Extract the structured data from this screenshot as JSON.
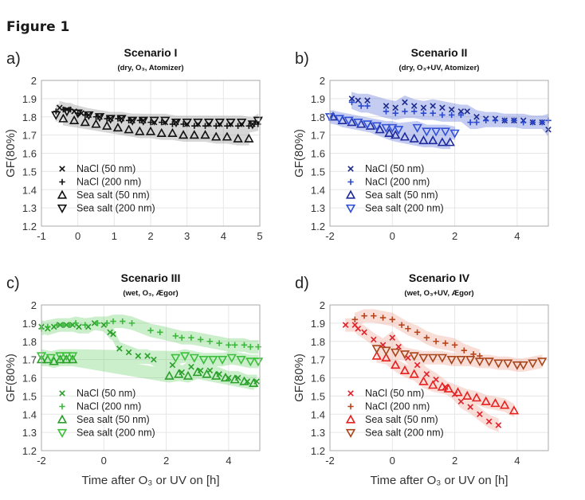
{
  "figure_title": "Figure 1",
  "chart_data": [
    {
      "type": "scatter",
      "panel_letter": "a)",
      "title": "Scenario I",
      "subtitle": "(dry, O₃, Atomizer)",
      "xlabel": "",
      "ylabel": "GF(80%)",
      "xlim": [
        -1,
        5
      ],
      "ylim": [
        1.2,
        2.0
      ],
      "xticks": [
        -1,
        0,
        1,
        2,
        3,
        4,
        5
      ],
      "yticks": [
        1.2,
        1.3,
        1.4,
        1.5,
        1.6,
        1.7,
        1.8,
        1.9,
        2.0
      ],
      "ytick_labels": [
        "1.2",
        "1.3",
        "1.4",
        "1.5",
        "1.6",
        "1.7",
        "1.8",
        "1.9",
        "2"
      ],
      "grid": true,
      "legend_location": "lower-left",
      "band_color": "#8c8c8c",
      "series": [
        {
          "name": "NaCl (50 nm)",
          "marker": "x",
          "color": "#111111",
          "x": [
            -0.5,
            -0.3,
            -0.1,
            0.1,
            0.3,
            0.6,
            0.9,
            1.2,
            1.5,
            1.8,
            2.1,
            2.4,
            2.7,
            3.0,
            3.3,
            3.6,
            3.9,
            4.2,
            4.5,
            4.8
          ],
          "y": [
            1.85,
            1.84,
            1.83,
            1.82,
            1.81,
            1.8,
            1.79,
            1.79,
            1.78,
            1.78,
            1.77,
            1.77,
            1.77,
            1.76,
            1.76,
            1.76,
            1.76,
            1.76,
            1.76,
            1.76
          ]
        },
        {
          "name": "NaCl (200 nm)",
          "marker": "+",
          "color": "#111111",
          "x": [
            -0.6,
            -0.4,
            -0.2,
            0.0,
            0.2,
            0.5,
            0.8,
            1.1,
            1.4,
            1.7,
            2.0,
            2.3,
            2.6,
            2.9,
            3.2,
            3.5,
            3.8,
            4.1,
            4.4,
            4.7,
            4.95
          ],
          "y": [
            1.83,
            1.84,
            1.84,
            1.82,
            1.81,
            1.8,
            1.79,
            1.79,
            1.78,
            1.78,
            1.77,
            1.77,
            1.76,
            1.76,
            1.75,
            1.75,
            1.75,
            1.75,
            1.75,
            1.75,
            1.76
          ]
        },
        {
          "name": "Sea salt (50 nm)",
          "marker": "^",
          "color": "#111111",
          "x": [
            -0.4,
            -0.1,
            0.2,
            0.5,
            0.8,
            1.1,
            1.4,
            1.7,
            2.0,
            2.3,
            2.6,
            2.9,
            3.2,
            3.5,
            3.8,
            4.1,
            4.4,
            4.7
          ],
          "y": [
            1.79,
            1.78,
            1.77,
            1.76,
            1.75,
            1.74,
            1.73,
            1.72,
            1.72,
            1.71,
            1.71,
            1.7,
            1.7,
            1.7,
            1.69,
            1.69,
            1.68,
            1.68
          ]
        },
        {
          "name": "Sea salt (200 nm)",
          "marker": "v",
          "color": "#111111",
          "x": [
            -0.6,
            -0.3,
            0.0,
            0.3,
            0.6,
            0.9,
            1.2,
            1.5,
            1.8,
            2.1,
            2.4,
            2.7,
            3.0,
            3.3,
            3.6,
            3.9,
            4.2,
            4.5,
            4.8,
            4.95
          ],
          "y": [
            1.81,
            1.83,
            1.82,
            1.81,
            1.8,
            1.79,
            1.79,
            1.78,
            1.78,
            1.78,
            1.78,
            1.77,
            1.77,
            1.77,
            1.77,
            1.77,
            1.77,
            1.77,
            1.76,
            1.78
          ]
        }
      ]
    },
    {
      "type": "scatter",
      "panel_letter": "b)",
      "title": "Scenario II",
      "subtitle": "(dry, O₃+UV, Atomizer)",
      "xlabel": "",
      "ylabel": "GF(80%)",
      "xlim": [
        -2,
        5
      ],
      "ylim": [
        1.2,
        2.0
      ],
      "xticks": [
        -2,
        0,
        2,
        4
      ],
      "yticks": [
        1.2,
        1.3,
        1.4,
        1.5,
        1.6,
        1.7,
        1.8,
        1.9,
        2.0
      ],
      "ytick_labels": [
        "1.2",
        "1.3",
        "1.4",
        "1.5",
        "1.6",
        "1.7",
        "1.8",
        "1.9",
        "2"
      ],
      "grid": true,
      "legend_location": "lower-left",
      "band_color": "#5a6ed8",
      "series": [
        {
          "name": "NaCl (50 nm)",
          "marker": "x",
          "color": "#1c2a8c",
          "x": [
            -1.3,
            -1.1,
            -0.8,
            -0.2,
            0.1,
            0.4,
            0.7,
            1.0,
            1.3,
            1.6,
            1.9,
            2.2,
            2.4,
            2.7,
            3.0,
            3.3,
            3.6,
            3.9,
            4.2,
            4.5,
            4.8,
            5.0
          ],
          "y": [
            1.9,
            1.89,
            1.89,
            1.86,
            1.85,
            1.88,
            1.86,
            1.85,
            1.86,
            1.85,
            1.84,
            1.83,
            1.83,
            1.8,
            1.79,
            1.79,
            1.78,
            1.78,
            1.78,
            1.77,
            1.77,
            1.73
          ]
        },
        {
          "name": "NaCl (200 nm)",
          "marker": "+",
          "color": "#2a48d0",
          "x": [
            -1.3,
            -1.0,
            -0.8,
            -0.2,
            0.1,
            0.4,
            0.7,
            1.0,
            1.3,
            1.6,
            1.9,
            2.2,
            2.5,
            2.7,
            3.0,
            3.3,
            3.6,
            3.9,
            4.2,
            4.5,
            4.8,
            5.0
          ],
          "y": [
            1.88,
            1.86,
            1.86,
            1.83,
            1.82,
            1.83,
            1.83,
            1.82,
            1.82,
            1.81,
            1.81,
            1.81,
            1.77,
            1.77,
            1.78,
            1.78,
            1.78,
            1.78,
            1.77,
            1.77,
            1.77,
            1.78
          ]
        },
        {
          "name": "Sea salt (50 nm)",
          "marker": "^",
          "color": "#1e2a9c",
          "x": [
            -1.9,
            -1.6,
            -1.3,
            -1.0,
            -0.7,
            -0.4,
            -0.1,
            0.1,
            0.4,
            0.7,
            1.0,
            1.3,
            1.6,
            1.85
          ],
          "y": [
            1.8,
            1.78,
            1.77,
            1.76,
            1.75,
            1.73,
            1.71,
            1.7,
            1.69,
            1.68,
            1.67,
            1.67,
            1.66,
            1.66
          ]
        },
        {
          "name": "Sea salt (200 nm)",
          "marker": "v",
          "color": "#3050d8",
          "x": [
            -2.0,
            -1.7,
            -1.4,
            -1.1,
            -0.8,
            -0.5,
            -0.2,
            0.0,
            0.2,
            0.8,
            1.1,
            1.4,
            1.7,
            2.0
          ],
          "y": [
            1.8,
            1.79,
            1.78,
            1.77,
            1.76,
            1.75,
            1.74,
            1.74,
            1.73,
            1.74,
            1.72,
            1.72,
            1.72,
            1.71
          ]
        }
      ]
    },
    {
      "type": "scatter",
      "panel_letter": "c)",
      "title": "Scenario III",
      "subtitle": "(wet, O₃, Ægor)",
      "xlabel": "Time after O₃ or UV on [h]",
      "ylabel": "GF(80%)",
      "xlim": [
        -2,
        5
      ],
      "ylim": [
        1.2,
        2.0
      ],
      "xticks": [
        -2,
        0,
        2,
        4
      ],
      "yticks": [
        1.2,
        1.3,
        1.4,
        1.5,
        1.6,
        1.7,
        1.8,
        1.9,
        2.0
      ],
      "ytick_labels": [
        "1.2",
        "1.3",
        "1.4",
        "1.5",
        "1.6",
        "1.7",
        "1.8",
        "1.9",
        "2"
      ],
      "grid": true,
      "legend_location": "lower-left",
      "band_color": "#6ccf6c",
      "series": [
        {
          "name": "NaCl (50 nm)",
          "marker": "x",
          "color": "#2aa02a",
          "x": [
            -2.0,
            -1.8,
            -1.6,
            -1.4,
            -1.2,
            -1.0,
            -0.8,
            -0.5,
            -0.3,
            0.0,
            0.2,
            0.3,
            0.5,
            0.8,
            1.1,
            1.4,
            1.6,
            2.2,
            2.5,
            2.8,
            3.1,
            3.4,
            3.7,
            4.0,
            4.3,
            4.6,
            4.9
          ],
          "y": [
            1.88,
            1.87,
            1.88,
            1.89,
            1.89,
            1.89,
            1.88,
            1.88,
            1.9,
            1.89,
            1.85,
            1.84,
            1.76,
            1.74,
            1.72,
            1.72,
            1.7,
            1.67,
            1.63,
            1.66,
            1.64,
            1.64,
            1.62,
            1.6,
            1.6,
            1.58,
            1.58
          ]
        },
        {
          "name": "NaCl (200 nm)",
          "marker": "+",
          "color": "#3cb83c",
          "x": [
            -2.0,
            -1.8,
            -1.5,
            -1.3,
            -1.1,
            -0.9,
            -0.6,
            -0.2,
            0.1,
            0.3,
            0.6,
            0.9,
            1.5,
            1.8,
            2.3,
            2.5,
            2.8,
            3.1,
            3.4,
            3.7,
            4.0,
            4.2,
            4.5,
            4.7,
            4.95
          ],
          "y": [
            1.87,
            1.88,
            1.89,
            1.89,
            1.89,
            1.9,
            1.89,
            1.9,
            1.9,
            1.91,
            1.91,
            1.9,
            1.86,
            1.85,
            1.83,
            1.82,
            1.82,
            1.81,
            1.8,
            1.79,
            1.78,
            1.78,
            1.78,
            1.77,
            1.77
          ]
        },
        {
          "name": "Sea salt (50 nm)",
          "marker": "^",
          "color": "#2aa02a",
          "x": [
            -2.0,
            -1.8,
            -1.6,
            -1.4,
            -1.2,
            -1.0,
            2.1,
            2.4,
            2.7,
            3.0,
            3.3,
            3.6,
            3.9,
            4.2,
            4.5,
            4.8
          ],
          "y": [
            1.7,
            1.7,
            1.69,
            1.7,
            1.7,
            1.7,
            1.61,
            1.62,
            1.61,
            1.63,
            1.62,
            1.61,
            1.6,
            1.59,
            1.58,
            1.57
          ]
        },
        {
          "name": "Sea salt (200 nm)",
          "marker": "v",
          "color": "#3cc03c",
          "x": [
            -2.0,
            -1.7,
            -1.4,
            -1.2,
            -1.0,
            2.3,
            2.6,
            2.9,
            3.2,
            3.5,
            3.8,
            4.1,
            4.4,
            4.7,
            4.95
          ],
          "y": [
            1.72,
            1.71,
            1.72,
            1.72,
            1.72,
            1.71,
            1.72,
            1.71,
            1.7,
            1.7,
            1.7,
            1.71,
            1.7,
            1.69,
            1.69
          ]
        }
      ]
    },
    {
      "type": "scatter",
      "panel_letter": "d)",
      "title": "Scenario IV",
      "subtitle": "(wet, O₃+UV, Ægor)",
      "xlabel": "Time after O₃ or UV on [h]",
      "ylabel": "GF(80%)",
      "xlim": [
        -2,
        5
      ],
      "ylim": [
        1.2,
        2.0
      ],
      "xticks": [
        -2,
        0,
        2,
        4
      ],
      "yticks": [
        1.2,
        1.3,
        1.4,
        1.5,
        1.6,
        1.7,
        1.8,
        1.9,
        2.0
      ],
      "ytick_labels": [
        "1.2",
        "1.3",
        "1.4",
        "1.5",
        "1.6",
        "1.7",
        "1.8",
        "1.9",
        "2"
      ],
      "grid": true,
      "legend_location": "lower-left",
      "band_color": "#f0a090",
      "series": [
        {
          "name": "NaCl (50 nm)",
          "marker": "x",
          "color": "#e0202a",
          "x": [
            -1.5,
            -1.2,
            -1.1,
            -0.9,
            -0.6,
            -0.3,
            0.0,
            0.2,
            0.5,
            0.8,
            1.1,
            1.4,
            1.7,
            2.0,
            2.2,
            2.5,
            2.8,
            3.1,
            3.4
          ],
          "y": [
            1.89,
            1.89,
            1.87,
            1.85,
            1.81,
            1.78,
            1.82,
            1.77,
            1.71,
            1.67,
            1.62,
            1.59,
            1.55,
            1.51,
            1.47,
            1.44,
            1.4,
            1.36,
            1.34
          ]
        },
        {
          "name": "NaCl (200 nm)",
          "marker": "+",
          "color": "#b8441c",
          "x": [
            -1.2,
            -0.9,
            -0.6,
            -0.3,
            0.0,
            0.3,
            0.5,
            0.8,
            1.1,
            1.4,
            1.7,
            2.0,
            2.3,
            2.6,
            2.8
          ],
          "y": [
            1.92,
            1.94,
            1.94,
            1.93,
            1.92,
            1.89,
            1.87,
            1.85,
            1.82,
            1.8,
            1.79,
            1.78,
            1.75,
            1.73,
            1.72
          ]
        },
        {
          "name": "Sea salt (50 nm)",
          "marker": "^",
          "color": "#e82020",
          "x": [
            -0.5,
            -0.2,
            0.1,
            0.4,
            0.7,
            1.0,
            1.3,
            1.6,
            1.8,
            2.1,
            2.4,
            2.7,
            3.0,
            3.3,
            3.6,
            3.9
          ],
          "y": [
            1.72,
            1.71,
            1.67,
            1.64,
            1.62,
            1.58,
            1.56,
            1.55,
            1.54,
            1.52,
            1.5,
            1.49,
            1.47,
            1.46,
            1.45,
            1.42
          ]
        },
        {
          "name": "Sea salt (200 nm)",
          "marker": "v",
          "color": "#a8441a",
          "x": [
            -0.5,
            -0.2,
            0.1,
            0.4,
            0.7,
            1.0,
            1.3,
            1.6,
            1.9,
            2.2,
            2.5,
            2.8,
            3.1,
            3.4,
            3.7,
            4.0,
            4.2,
            4.5,
            4.8
          ],
          "y": [
            1.76,
            1.75,
            1.74,
            1.73,
            1.72,
            1.71,
            1.71,
            1.71,
            1.7,
            1.7,
            1.7,
            1.69,
            1.69,
            1.68,
            1.68,
            1.67,
            1.67,
            1.68,
            1.69
          ]
        }
      ]
    }
  ]
}
